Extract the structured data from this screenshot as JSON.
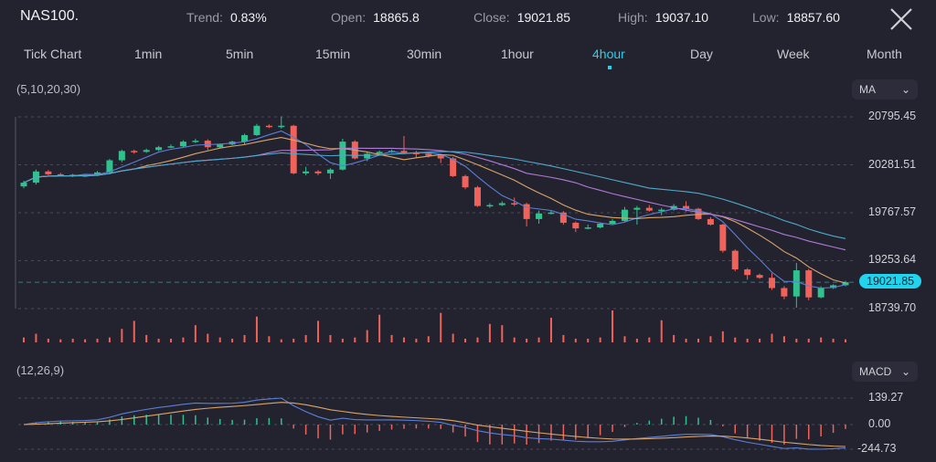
{
  "header": {
    "symbol": "NAS100.",
    "stats": [
      {
        "label": "Trend:",
        "value": "0.83%"
      },
      {
        "label": "Open:",
        "value": "18865.8"
      },
      {
        "label": "Close:",
        "value": "19021.85"
      },
      {
        "label": "High:",
        "value": "19037.10"
      },
      {
        "label": "Low:",
        "value": "18857.60"
      }
    ],
    "close_icon": "close-x-icon"
  },
  "timeframes": [
    {
      "label": "Tick Chart",
      "active": false
    },
    {
      "label": "1min",
      "active": false
    },
    {
      "label": "5min",
      "active": false
    },
    {
      "label": "15min",
      "active": false
    },
    {
      "label": "30min",
      "active": false
    },
    {
      "label": "1hour",
      "active": false
    },
    {
      "label": "4hour",
      "active": true
    },
    {
      "label": "Day",
      "active": false
    },
    {
      "label": "Week",
      "active": false
    },
    {
      "label": "Month",
      "active": false
    }
  ],
  "main_indicator": {
    "params": "(5,10,20,30)",
    "selector": "MA"
  },
  "sub_indicator": {
    "params": "(12,26,9)",
    "selector": "MACD"
  },
  "colors": {
    "background": "#23232f",
    "up": "#2fc28e",
    "down": "#f0625a",
    "accent": "#22d3ee",
    "ma5": "#5b7fd6",
    "ma10": "#d9a46a",
    "ma20": "#b07ad6",
    "ma30": "#4fa9c9"
  },
  "chart_data": {
    "type": "candlestick",
    "price_axis_labels": [
      "20795.45",
      "20281.51",
      "19767.57",
      "19253.64",
      "18739.70"
    ],
    "price_ticks": [
      20795.45,
      20281.51,
      19767.57,
      19253.64,
      18739.7
    ],
    "current_price_label": "19021.85",
    "current_price": 19021.85,
    "moving_averages": [
      5,
      10,
      20,
      30
    ],
    "candles": [
      [
        20050,
        20110,
        20030,
        20090
      ],
      [
        20090,
        20230,
        20070,
        20210
      ],
      [
        20210,
        20225,
        20170,
        20180
      ],
      [
        20180,
        20195,
        20160,
        20175
      ],
      [
        20175,
        20185,
        20150,
        20160
      ],
      [
        20160,
        20185,
        20150,
        20170
      ],
      [
        20170,
        20215,
        20160,
        20200
      ],
      [
        20200,
        20345,
        20180,
        20330
      ],
      [
        20330,
        20445,
        20310,
        20430
      ],
      [
        20430,
        20445,
        20400,
        20420
      ],
      [
        20420,
        20455,
        20410,
        20440
      ],
      [
        20440,
        20485,
        20430,
        20470
      ],
      [
        20470,
        20500,
        20460,
        20480
      ],
      [
        20480,
        20545,
        20470,
        20530
      ],
      [
        20530,
        20560,
        20515,
        20540
      ],
      [
        20540,
        20555,
        20440,
        20470
      ],
      [
        20470,
        20510,
        20460,
        20500
      ],
      [
        20500,
        20540,
        20490,
        20530
      ],
      [
        20530,
        20615,
        20500,
        20600
      ],
      [
        20600,
        20720,
        20590,
        20700
      ],
      [
        20700,
        20715,
        20675,
        20690
      ],
      [
        20690,
        20800,
        20670,
        20700
      ],
      [
        20700,
        20710,
        20180,
        20190
      ],
      [
        20190,
        20260,
        20170,
        20210
      ],
      [
        20210,
        20225,
        20170,
        20190
      ],
      [
        20190,
        20245,
        20130,
        20230
      ],
      [
        20230,
        20560,
        20220,
        20530
      ],
      [
        20530,
        20545,
        20340,
        20350
      ],
      [
        20350,
        20415,
        20320,
        20400
      ],
      [
        20400,
        20435,
        20390,
        20420
      ],
      [
        20420,
        20445,
        20410,
        20430
      ],
      [
        20430,
        20590,
        20400,
        20410
      ],
      [
        20410,
        20430,
        20360,
        20400
      ],
      [
        20400,
        20420,
        20360,
        20380
      ],
      [
        20380,
        20395,
        20300,
        20350
      ],
      [
        20350,
        20365,
        20150,
        20160
      ],
      [
        20160,
        20175,
        20020,
        20040
      ],
      [
        20040,
        20055,
        19830,
        19840
      ],
      [
        19840,
        19870,
        19820,
        19850
      ],
      [
        19850,
        19890,
        19840,
        19870
      ],
      [
        19870,
        19930,
        19840,
        19860
      ],
      [
        19860,
        19875,
        19620,
        19700
      ],
      [
        19700,
        19790,
        19650,
        19760
      ],
      [
        19760,
        19790,
        19750,
        19770
      ],
      [
        19770,
        19785,
        19640,
        19660
      ],
      [
        19660,
        19675,
        19560,
        19600
      ],
      [
        19600,
        19640,
        19590,
        19610
      ],
      [
        19610,
        19665,
        19600,
        19650
      ],
      [
        19650,
        19700,
        19640,
        19680
      ],
      [
        19680,
        19830,
        19670,
        19800
      ],
      [
        19800,
        19840,
        19640,
        19820
      ],
      [
        19820,
        19850,
        19780,
        19790
      ],
      [
        19790,
        19820,
        19740,
        19800
      ],
      [
        19800,
        19860,
        19790,
        19840
      ],
      [
        19840,
        19890,
        19780,
        19810
      ],
      [
        19810,
        19820,
        19690,
        19700
      ],
      [
        19700,
        19720,
        19630,
        19640
      ],
      [
        19640,
        19650,
        19340,
        19360
      ],
      [
        19360,
        19375,
        19140,
        19160
      ],
      [
        19160,
        19175,
        19050,
        19100
      ],
      [
        19100,
        19115,
        19060,
        19070
      ],
      [
        19070,
        19120,
        18940,
        18960
      ],
      [
        18960,
        18980,
        18840,
        18870
      ],
      [
        18870,
        19230,
        18750,
        19150
      ],
      [
        19150,
        19165,
        18830,
        18860
      ],
      [
        18860,
        18980,
        18850,
        18960
      ],
      [
        18960,
        19000,
        18950,
        18990
      ],
      [
        18990,
        19037,
        18980,
        19022
      ]
    ],
    "volume": [
      8,
      14,
      6,
      5,
      6,
      5,
      6,
      8,
      22,
      35,
      12,
      6,
      6,
      8,
      28,
      14,
      8,
      6,
      12,
      42,
      10,
      5,
      6,
      12,
      35,
      12,
      6,
      8,
      20,
      45,
      12,
      8,
      6,
      10,
      48,
      14,
      6,
      8,
      30,
      28,
      8,
      6,
      8,
      40,
      12,
      6,
      6,
      8,
      52,
      10,
      6,
      8,
      36,
      12,
      6,
      6,
      10,
      18,
      8,
      6,
      6,
      14,
      10,
      6,
      6,
      8,
      6,
      5
    ],
    "macd_axis_labels": [
      "139.27",
      "0.00",
      "-244.73"
    ],
    "macd_range": [
      -244.73,
      139.27
    ],
    "macd_params": [
      12,
      26,
      9
    ]
  }
}
